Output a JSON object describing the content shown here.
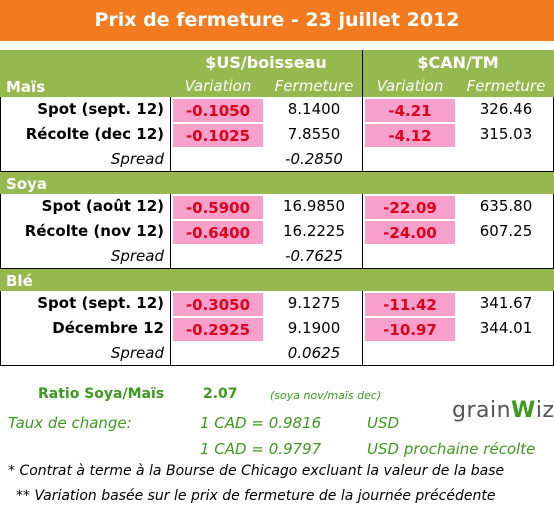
{
  "title": "Prix de fermeture - 23 juillet 2012",
  "columns": {
    "us_header": "$US/boisseau",
    "can_header": "$CAN/TM",
    "variation": "Variation",
    "fermeture": "Fermeture"
  },
  "sections": [
    {
      "name": "Maïs",
      "rows": [
        {
          "label": "Spot (sept. 12)",
          "us_var": "-0.1050",
          "us_close": "8.1400",
          "can_var": "-4.21",
          "can_close": "326.46"
        },
        {
          "label": "Récolte (dec 12)",
          "us_var": "-0.1025",
          "us_close": "7.8550",
          "can_var": "-4.12",
          "can_close": "315.03"
        }
      ],
      "spread_label": "Spread",
      "spread_value": "-0.2850"
    },
    {
      "name": "Soya",
      "rows": [
        {
          "label": "Spot (août 12)",
          "us_var": "-0.5900",
          "us_close": "16.9850",
          "can_var": "-22.09",
          "can_close": "635.80"
        },
        {
          "label": "Récolte (nov 12)",
          "us_var": "-0.6400",
          "us_close": "16.2225",
          "can_var": "-24.00",
          "can_close": "607.25"
        }
      ],
      "spread_label": "Spread",
      "spread_value": "-0.7625"
    },
    {
      "name": "Blé",
      "rows": [
        {
          "label": "Spot (sept. 12)",
          "us_var": "-0.3050",
          "us_close": "9.1275",
          "can_var": "-11.42",
          "can_close": "341.67"
        },
        {
          "label": "Décembre 12",
          "us_var": "-0.2925",
          "us_close": "9.1900",
          "can_var": "-10.97",
          "can_close": "344.01"
        }
      ],
      "spread_label": "Spread",
      "spread_value": "0.0625"
    }
  ],
  "ratio": {
    "label": "Ratio Soya/Maïs",
    "value": "2.07",
    "note": "(soya nov/maïs dec)"
  },
  "exchange": {
    "label": "Taux de change:",
    "line1": "1 CAD =  0.9816",
    "line1_unit": "USD",
    "line2": "1 CAD =  0.9797",
    "line2_unit": "USD prochaine récolte"
  },
  "logo": {
    "text_left": "grain",
    "text_mid": "W",
    "text_right": "iz"
  },
  "footnotes": {
    "note1": "* Contrat à terme à la Bourse de Chicago excluant la valeur de la base",
    "note2": "** Variation basée sur le prix de fermeture de la journée précédente"
  },
  "colors": {
    "title_bg": "#f47a20",
    "header_bg": "#95b94f",
    "negative_bg": "#f8a0cc",
    "negative_text": "#e0001b",
    "ratio_text": "#3d9a1e"
  }
}
